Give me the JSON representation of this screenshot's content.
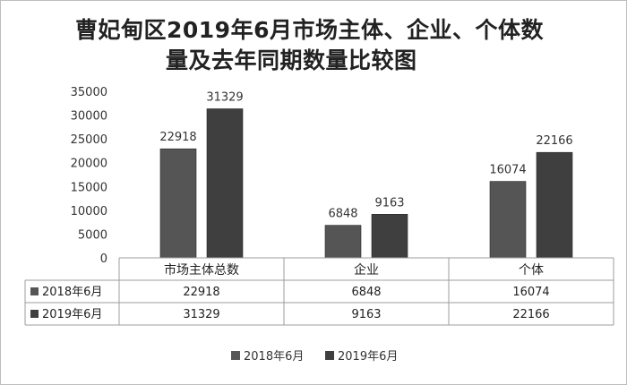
{
  "chart_data": {
    "type": "bar",
    "title": "曹妃甸区2019年6月市场主体、企业、个体数量及去年同期数量比较图",
    "title_line1": "曹妃甸区2019年6月市场主体、企业、个体数",
    "title_line2": "量及去年同期数量比较图",
    "categories": [
      "市场主体总数",
      "企业",
      "个体"
    ],
    "series": [
      {
        "name": "2018年6月",
        "values": [
          22918,
          6848,
          16074
        ],
        "color": "#555555"
      },
      {
        "name": "2019年6月",
        "values": [
          31329,
          9163,
          22166
        ],
        "color": "#3f3f3f"
      }
    ],
    "ylim": [
      0,
      35000
    ],
    "yticks": [
      0,
      5000,
      10000,
      15000,
      20000,
      25000,
      30000,
      35000
    ],
    "xlabel": "",
    "ylabel": "",
    "grid": false,
    "legend": "bottom",
    "data_table": true
  }
}
